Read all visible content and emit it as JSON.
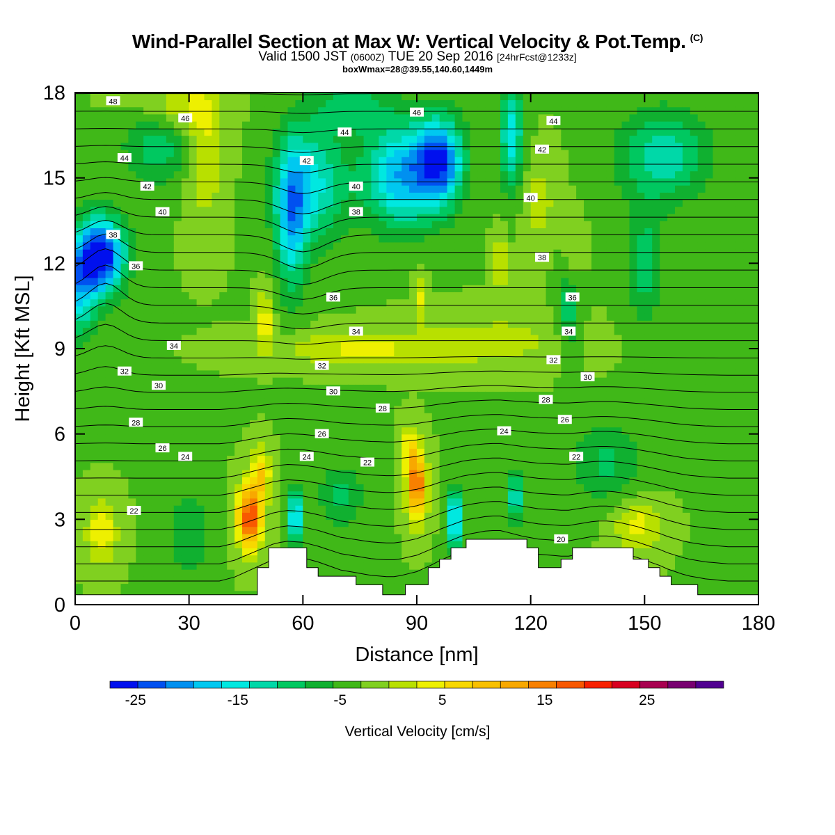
{
  "header": {
    "title": "Wind-Parallel Section at Max W: Vertical Velocity & Pot.Temp.",
    "copyright": "(C)",
    "valid_main": "Valid 1500 JST",
    "valid_utc": "(0600Z)",
    "valid_date": "TUE 20 Sep 2016",
    "forecast": "[24hrFcst@1233z]",
    "boxinfo": "boxWmax=28@39.55,140.60,1449m"
  },
  "chart_data": {
    "type": "heatmap",
    "xlabel": "Distance [nm]",
    "ylabel": "Height [Kft MSL]",
    "xlim": [
      0,
      180
    ],
    "ylim": [
      0,
      18
    ],
    "xticks": [
      "0",
      "30",
      "60",
      "90",
      "120",
      "150",
      "180"
    ],
    "yticks": [
      "0",
      "3",
      "6",
      "9",
      "12",
      "15",
      "18"
    ],
    "colorbar": {
      "label": "Vertical Velocity [cm/s]",
      "tick_labels": [
        "-25",
        "-15",
        "-5",
        "5",
        "15",
        "25"
      ],
      "tick_values": [
        -25,
        -15,
        -5,
        5,
        15,
        25
      ],
      "bins": [
        -27.5,
        32.5
      ],
      "colors": [
        "#0010ee",
        "#0050f0",
        "#0090f0",
        "#00c8f0",
        "#00e8e0",
        "#00d8a8",
        "#00c860",
        "#10b030",
        "#40b818",
        "#80d020",
        "#b8e000",
        "#eef000",
        "#f8d800",
        "#f8c000",
        "#f8a800",
        "#f88000",
        "#f85800",
        "#f82000",
        "#d80020",
        "#a80050",
        "#780070",
        "#500090"
      ]
    },
    "terrain": [
      [
        0,
        0.35
      ],
      [
        48,
        0.35
      ],
      [
        48,
        1.3
      ],
      [
        51,
        1.3
      ],
      [
        51,
        2.0
      ],
      [
        61,
        2.0
      ],
      [
        61,
        1.3
      ],
      [
        64,
        1.3
      ],
      [
        64,
        1.0
      ],
      [
        74,
        1.0
      ],
      [
        74,
        0.7
      ],
      [
        81,
        0.7
      ],
      [
        81,
        0.35
      ],
      [
        87,
        0.35
      ],
      [
        87,
        0.7
      ],
      [
        93,
        0.7
      ],
      [
        93,
        1.3
      ],
      [
        96,
        1.3
      ],
      [
        96,
        1.6
      ],
      [
        99,
        1.6
      ],
      [
        99,
        2.0
      ],
      [
        103,
        2.0
      ],
      [
        103,
        2.3
      ],
      [
        119,
        2.3
      ],
      [
        119,
        2.0
      ],
      [
        122,
        2.0
      ],
      [
        122,
        1.3
      ],
      [
        128,
        1.3
      ],
      [
        128,
        1.6
      ],
      [
        131,
        1.6
      ],
      [
        131,
        2.0
      ],
      [
        147,
        2.0
      ],
      [
        147,
        1.6
      ],
      [
        151,
        1.6
      ],
      [
        151,
        1.3
      ],
      [
        154,
        1.3
      ],
      [
        154,
        1.0
      ],
      [
        157,
        1.0
      ],
      [
        157,
        0.7
      ],
      [
        164,
        0.7
      ],
      [
        164,
        0.35
      ],
      [
        180,
        0.35
      ]
    ],
    "w_background": -3,
    "w_blobs": [
      [
        -24,
        7,
        12.3,
        6,
        1.3
      ],
      [
        -14,
        1,
        11.3,
        5,
        1.7
      ],
      [
        -10,
        22,
        16.8,
        9,
        1.8
      ],
      [
        -13,
        57,
        13.5,
        4,
        2.5
      ],
      [
        -12,
        62,
        14.8,
        9,
        2.0
      ],
      [
        -16,
        86,
        15.1,
        10,
        1.8
      ],
      [
        -19,
        96,
        15.6,
        6,
        1.5
      ],
      [
        -13,
        115,
        16.5,
        3,
        2.0
      ],
      [
        -10,
        155,
        15.8,
        12,
        1.6
      ],
      [
        -7,
        73,
        17.5,
        10,
        0.9
      ],
      [
        -8,
        130,
        10.5,
        3,
        1.5
      ],
      [
        -7,
        150,
        12.0,
        5,
        2.0
      ],
      [
        8,
        50,
        10.0,
        2,
        1.0
      ],
      [
        6,
        91,
        10.8,
        1.8,
        0.8
      ],
      [
        6,
        112,
        12.0,
        1.8,
        1.2
      ],
      [
        4,
        131,
        12.2,
        2.5,
        1.2
      ],
      [
        11,
        24,
        17.5,
        10,
        1.0
      ],
      [
        6,
        34,
        16.0,
        5,
        2.5
      ],
      [
        4,
        122,
        14.2,
        5,
        1.5
      ],
      [
        6,
        75,
        9.0,
        22,
        0.6
      ],
      [
        4,
        110,
        9.3,
        20,
        0.9
      ],
      [
        22,
        46,
        3.1,
        3.2,
        1.1
      ],
      [
        10,
        49,
        4.6,
        2.5,
        0.9
      ],
      [
        20,
        90,
        4.2,
        2.5,
        1.2
      ],
      [
        8,
        88,
        5.5,
        2.0,
        0.8
      ],
      [
        -18,
        58,
        3.1,
        1.5,
        1.0
      ],
      [
        -20,
        100,
        3.0,
        1.6,
        1.0
      ],
      [
        -14,
        116,
        3.8,
        1.5,
        0.9
      ],
      [
        8,
        7,
        2.6,
        4,
        1.1
      ],
      [
        7,
        148,
        2.8,
        6,
        0.9
      ],
      [
        -6,
        140,
        5.0,
        9,
        1.4
      ],
      [
        -6,
        70,
        3.8,
        6,
        1.2
      ],
      [
        -5,
        30,
        2.5,
        6,
        1.5
      ]
    ],
    "theta_levels": [
      20,
      21,
      22,
      23,
      24,
      25,
      26,
      27,
      28,
      29,
      30,
      31,
      32,
      33,
      34,
      35,
      36,
      37,
      38,
      39,
      40,
      41,
      42,
      43,
      44,
      45,
      46,
      47,
      48
    ],
    "theta_labels": [
      [
        15.5,
        3.3,
        "22"
      ],
      [
        77,
        5.0,
        "22"
      ],
      [
        132,
        5.2,
        "22"
      ],
      [
        128,
        2.3,
        "20"
      ],
      [
        29,
        5.2,
        "24"
      ],
      [
        61,
        5.2,
        "24"
      ],
      [
        113,
        6.1,
        "24"
      ],
      [
        23,
        5.5,
        "26"
      ],
      [
        65,
        6.0,
        "26"
      ],
      [
        129,
        6.5,
        "26"
      ],
      [
        16,
        6.4,
        "28"
      ],
      [
        81,
        6.9,
        "28"
      ],
      [
        124,
        7.2,
        "28"
      ],
      [
        22,
        7.7,
        "30"
      ],
      [
        68,
        7.5,
        "30"
      ],
      [
        135,
        8.0,
        "30"
      ],
      [
        13,
        8.2,
        "32"
      ],
      [
        65,
        8.4,
        "32"
      ],
      [
        126,
        8.6,
        "32"
      ],
      [
        26,
        9.1,
        "34"
      ],
      [
        74,
        9.6,
        "34"
      ],
      [
        130,
        9.6,
        "34"
      ],
      [
        68,
        10.8,
        "36"
      ],
      [
        131,
        10.8,
        "36"
      ],
      [
        16,
        11.9,
        "36"
      ],
      [
        10,
        13.0,
        "38"
      ],
      [
        74,
        13.8,
        "38"
      ],
      [
        123,
        12.2,
        "38"
      ],
      [
        23,
        13.8,
        "40"
      ],
      [
        74,
        14.7,
        "40"
      ],
      [
        120,
        14.3,
        "40"
      ],
      [
        19,
        14.7,
        "42"
      ],
      [
        61,
        15.6,
        "42"
      ],
      [
        123,
        16.0,
        "42"
      ],
      [
        13,
        15.7,
        "44"
      ],
      [
        71,
        16.6,
        "44"
      ],
      [
        126,
        17.0,
        "44"
      ],
      [
        29,
        17.1,
        "46"
      ],
      [
        90,
        17.3,
        "46"
      ],
      [
        10,
        17.7,
        "48"
      ]
    ]
  }
}
